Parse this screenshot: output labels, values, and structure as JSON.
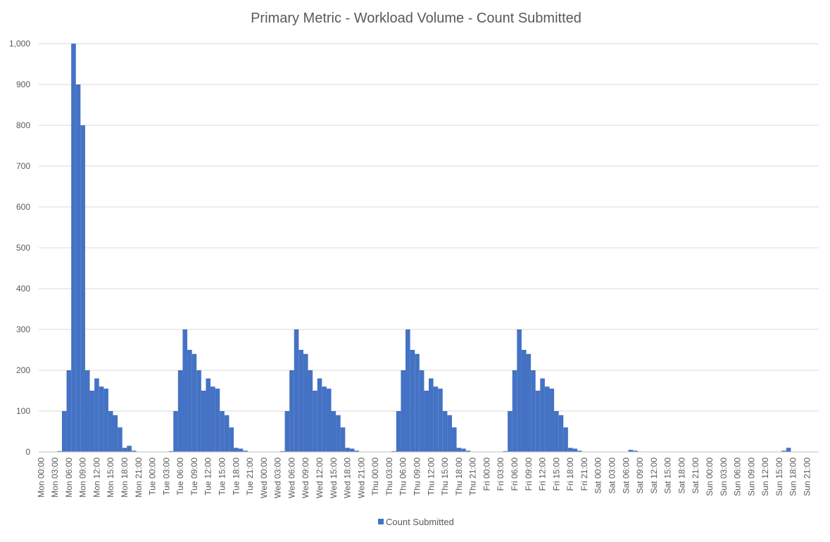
{
  "chart_data": {
    "type": "bar",
    "title": "Primary Metric - Workload Volume - Count Submitted",
    "xlabel": "",
    "ylabel": "",
    "ylim": [
      0,
      1000
    ],
    "y_ticks": [
      "0",
      "100",
      "200",
      "300",
      "400",
      "500",
      "600",
      "700",
      "800",
      "900",
      "1,000"
    ],
    "y_tick_values": [
      0,
      100,
      200,
      300,
      400,
      500,
      600,
      700,
      800,
      900,
      1000
    ],
    "grid": true,
    "legend_position": "bottom",
    "color": "#4472c4",
    "categories": [
      "Mon 00:00",
      "Mon 01:00",
      "Mon 02:00",
      "Mon 03:00",
      "Mon 04:00",
      "Mon 05:00",
      "Mon 06:00",
      "Mon 07:00",
      "Mon 08:00",
      "Mon 09:00",
      "Mon 10:00",
      "Mon 11:00",
      "Mon 12:00",
      "Mon 13:00",
      "Mon 14:00",
      "Mon 15:00",
      "Mon 16:00",
      "Mon 17:00",
      "Mon 18:00",
      "Mon 19:00",
      "Mon 20:00",
      "Mon 21:00",
      "Mon 22:00",
      "Mon 23:00",
      "Tue 00:00",
      "Tue 01:00",
      "Tue 02:00",
      "Tue 03:00",
      "Tue 04:00",
      "Tue 05:00",
      "Tue 06:00",
      "Tue 07:00",
      "Tue 08:00",
      "Tue 09:00",
      "Tue 10:00",
      "Tue 11:00",
      "Tue 12:00",
      "Tue 13:00",
      "Tue 14:00",
      "Tue 15:00",
      "Tue 16:00",
      "Tue 17:00",
      "Tue 18:00",
      "Tue 19:00",
      "Tue 20:00",
      "Tue 21:00",
      "Tue 22:00",
      "Tue 23:00",
      "Wed 00:00",
      "Wed 01:00",
      "Wed 02:00",
      "Wed 03:00",
      "Wed 04:00",
      "Wed 05:00",
      "Wed 06:00",
      "Wed 07:00",
      "Wed 08:00",
      "Wed 09:00",
      "Wed 10:00",
      "Wed 11:00",
      "Wed 12:00",
      "Wed 13:00",
      "Wed 14:00",
      "Wed 15:00",
      "Wed 16:00",
      "Wed 17:00",
      "Wed 18:00",
      "Wed 19:00",
      "Wed 20:00",
      "Wed 21:00",
      "Wed 22:00",
      "Wed 23:00",
      "Thu 00:00",
      "Thu 01:00",
      "Thu 02:00",
      "Thu 03:00",
      "Thu 04:00",
      "Thu 05:00",
      "Thu 06:00",
      "Thu 07:00",
      "Thu 08:00",
      "Thu 09:00",
      "Thu 10:00",
      "Thu 11:00",
      "Thu 12:00",
      "Thu 13:00",
      "Thu 14:00",
      "Thu 15:00",
      "Thu 16:00",
      "Thu 17:00",
      "Thu 18:00",
      "Thu 19:00",
      "Thu 20:00",
      "Thu 21:00",
      "Thu 22:00",
      "Thu 23:00",
      "Fri 00:00",
      "Fri 01:00",
      "Fri 02:00",
      "Fri 03:00",
      "Fri 04:00",
      "Fri 05:00",
      "Fri 06:00",
      "Fri 07:00",
      "Fri 08:00",
      "Fri 09:00",
      "Fri 10:00",
      "Fri 11:00",
      "Fri 12:00",
      "Fri 13:00",
      "Fri 14:00",
      "Fri 15:00",
      "Fri 16:00",
      "Fri 17:00",
      "Fri 18:00",
      "Fri 19:00",
      "Fri 20:00",
      "Fri 21:00",
      "Fri 22:00",
      "Fri 23:00",
      "Sat 00:00",
      "Sat 01:00",
      "Sat 02:00",
      "Sat 03:00",
      "Sat 04:00",
      "Sat 05:00",
      "Sat 06:00",
      "Sat 07:00",
      "Sat 08:00",
      "Sat 09:00",
      "Sat 10:00",
      "Sat 11:00",
      "Sat 12:00",
      "Sat 13:00",
      "Sat 14:00",
      "Sat 15:00",
      "Sat 16:00",
      "Sat 17:00",
      "Sat 18:00",
      "Sat 19:00",
      "Sat 20:00",
      "Sat 21:00",
      "Sat 22:00",
      "Sat 23:00",
      "Sun 00:00",
      "Sun 01:00",
      "Sun 02:00",
      "Sun 03:00",
      "Sun 04:00",
      "Sun 05:00",
      "Sun 06:00",
      "Sun 07:00",
      "Sun 08:00",
      "Sun 09:00",
      "Sun 10:00",
      "Sun 11:00",
      "Sun 12:00",
      "Sun 13:00",
      "Sun 14:00",
      "Sun 15:00",
      "Sun 16:00",
      "Sun 17:00",
      "Sun 18:00",
      "Sun 19:00",
      "Sun 20:00",
      "Sun 21:00",
      "Sun 22:00",
      "Sun 23:00"
    ],
    "x_tick_labels": [
      "Mon 00:00",
      "Mon 03:00",
      "Mon 06:00",
      "Mon 09:00",
      "Mon 12:00",
      "Mon 15:00",
      "Mon 18:00",
      "Mon 21:00",
      "Tue 00:00",
      "Tue 03:00",
      "Tue 06:00",
      "Tue 09:00",
      "Tue 12:00",
      "Tue 15:00",
      "Tue 18:00",
      "Tue 21:00",
      "Wed 00:00",
      "Wed 03:00",
      "Wed 06:00",
      "Wed 09:00",
      "Wed 12:00",
      "Wed 15:00",
      "Wed 18:00",
      "Wed 21:00",
      "Thu 00:00",
      "Thu 03:00",
      "Thu 06:00",
      "Thu 09:00",
      "Thu 12:00",
      "Thu 15:00",
      "Thu 18:00",
      "Thu 21:00",
      "Fri 00:00",
      "Fri 03:00",
      "Fri 06:00",
      "Fri 09:00",
      "Fri 12:00",
      "Fri 15:00",
      "Fri 18:00",
      "Fri 21:00",
      "Sat 00:00",
      "Sat 03:00",
      "Sat 06:00",
      "Sat 09:00",
      "Sat 12:00",
      "Sat 15:00",
      "Sat 18:00",
      "Sat 21:00",
      "Sun 00:00",
      "Sun 03:00",
      "Sun 06:00",
      "Sun 09:00",
      "Sun 12:00",
      "Sun 15:00",
      "Sun 18:00",
      "Sun 21:00"
    ],
    "series": [
      {
        "name": "Count Submitted",
        "values": [
          0,
          0,
          0,
          0,
          2,
          100,
          200,
          1000,
          900,
          800,
          200,
          150,
          180,
          160,
          155,
          100,
          90,
          60,
          10,
          15,
          3,
          0,
          0,
          0,
          0,
          0,
          0,
          0,
          2,
          100,
          200,
          300,
          250,
          240,
          200,
          150,
          180,
          160,
          155,
          100,
          90,
          60,
          10,
          8,
          3,
          0,
          0,
          0,
          0,
          0,
          0,
          0,
          2,
          100,
          200,
          300,
          250,
          240,
          200,
          150,
          180,
          160,
          155,
          100,
          90,
          60,
          10,
          8,
          3,
          0,
          0,
          0,
          0,
          0,
          0,
          0,
          2,
          100,
          200,
          300,
          250,
          240,
          200,
          150,
          180,
          160,
          155,
          100,
          90,
          60,
          10,
          8,
          3,
          0,
          0,
          0,
          0,
          0,
          0,
          0,
          2,
          100,
          200,
          300,
          250,
          240,
          200,
          150,
          180,
          160,
          155,
          100,
          90,
          60,
          10,
          8,
          3,
          0,
          0,
          0,
          0,
          0,
          0,
          0,
          0,
          0,
          0,
          5,
          3,
          1,
          0,
          0,
          0,
          0,
          0,
          0,
          0,
          0,
          0,
          0,
          0,
          0,
          0,
          0,
          0,
          0,
          0,
          0,
          0,
          0,
          0,
          0,
          0,
          0,
          0,
          0,
          0,
          0,
          0,
          0,
          3,
          10,
          0,
          0,
          0,
          0,
          0,
          0
        ]
      }
    ]
  }
}
